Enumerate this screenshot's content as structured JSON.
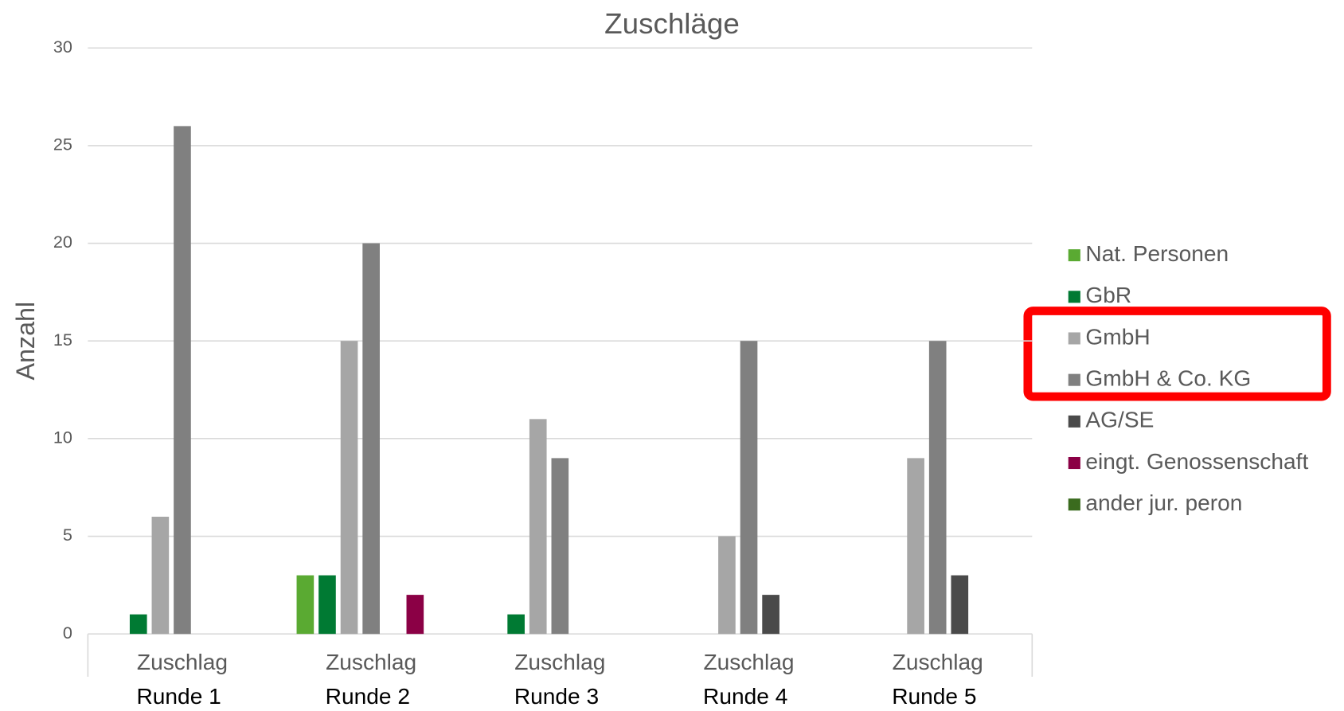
{
  "chart_data": {
    "type": "bar",
    "title": "Zuschläge",
    "y_label": "Anzahl",
    "categories": [
      "Zuschlag",
      "Zuschlag",
      "Zuschlag",
      "Zuschlag",
      "Zuschlag"
    ],
    "category_groups": [
      "Runde 1",
      "Runde 2",
      "Runde 3",
      "Runde 4",
      "Runde 5"
    ],
    "series": [
      {
        "name": "Nat. Personen",
        "color": "#5aaa32",
        "values": [
          0,
          3,
          0,
          0,
          0
        ]
      },
      {
        "name": "GbR",
        "color": "#007a33",
        "values": [
          1,
          3,
          1,
          0,
          0
        ]
      },
      {
        "name": "GmbH",
        "color": "#a6a6a6",
        "values": [
          6,
          15,
          11,
          5,
          9
        ]
      },
      {
        "name": "GmbH & Co. KG",
        "color": "#808080",
        "values": [
          26,
          20,
          9,
          15,
          15
        ]
      },
      {
        "name": "AG/SE",
        "color": "#4a4a4a",
        "values": [
          0,
          0,
          0,
          2,
          3
        ]
      },
      {
        "name": "eingt. Genossenschaft",
        "color": "#8b0045",
        "values": [
          0,
          2,
          0,
          0,
          0
        ]
      },
      {
        "name": "ander jur. peron",
        "color": "#3a6b1e",
        "values": [
          0,
          0,
          0,
          0,
          0
        ]
      }
    ],
    "ylim": [
      0,
      30
    ],
    "yticks": [
      0,
      5,
      10,
      15,
      20,
      25,
      30
    ],
    "grid": true,
    "legend": "right"
  }
}
